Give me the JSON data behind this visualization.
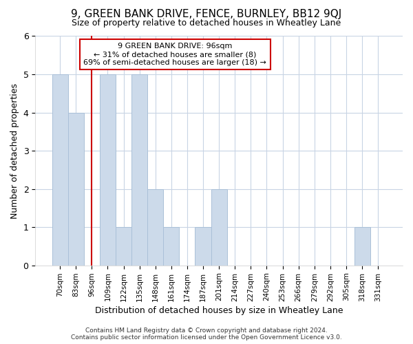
{
  "title": "9, GREEN BANK DRIVE, FENCE, BURNLEY, BB12 9QJ",
  "subtitle": "Size of property relative to detached houses in Wheatley Lane",
  "xlabel": "Distribution of detached houses by size in Wheatley Lane",
  "ylabel": "Number of detached properties",
  "footnote1": "Contains HM Land Registry data © Crown copyright and database right 2024.",
  "footnote2": "Contains public sector information licensed under the Open Government Licence v3.0.",
  "annotation_line1": "9 GREEN BANK DRIVE: 96sqm",
  "annotation_line2": "← 31% of detached houses are smaller (8)",
  "annotation_line3": "69% of semi-detached houses are larger (18) →",
  "categories": [
    "70sqm",
    "83sqm",
    "96sqm",
    "109sqm",
    "122sqm",
    "135sqm",
    "148sqm",
    "161sqm",
    "174sqm",
    "187sqm",
    "201sqm",
    "214sqm",
    "227sqm",
    "240sqm",
    "253sqm",
    "266sqm",
    "279sqm",
    "292sqm",
    "305sqm",
    "318sqm",
    "331sqm"
  ],
  "values": [
    5,
    4,
    0,
    5,
    1,
    5,
    2,
    1,
    0,
    1,
    2,
    0,
    0,
    0,
    0,
    0,
    0,
    0,
    0,
    1,
    0
  ],
  "bar_color": "#ccdaea",
  "bar_edge_color": "#aac0d8",
  "highlight_index": 2,
  "highlight_line_color": "#cc0000",
  "background_color": "#ffffff",
  "plot_bg_color": "#ffffff",
  "grid_color": "#c8d4e4",
  "annotation_box_color": "#ffffff",
  "annotation_box_edge": "#cc0000",
  "ylim": [
    0,
    6
  ],
  "yticks": [
    0,
    1,
    2,
    3,
    4,
    5,
    6
  ],
  "title_fontsize": 11,
  "subtitle_fontsize": 9
}
